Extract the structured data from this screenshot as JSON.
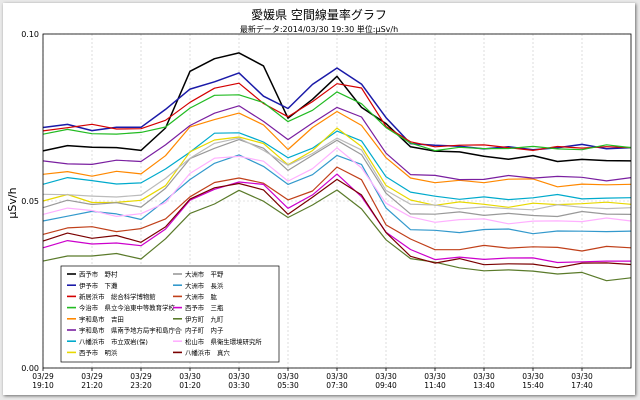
{
  "chart_data": {
    "type": "line",
    "title": "愛媛県 空間線量率グラフ",
    "subtitle": "最新データ:2014/03/30 19:30 単位:μSv/h",
    "ylabel": "μSv/h",
    "xlabel": "",
    "ylim": [
      0.0,
      0.1
    ],
    "yticks": [
      "0.00",
      "0.05",
      "0.10"
    ],
    "grid": true,
    "legend_position": "bottom-left",
    "x": [
      "03/29 19:10",
      "03/29 20:10",
      "03/29 21:20",
      "03/29 22:20",
      "03/29 23:20",
      "03/30 00:20",
      "03/30 01:20",
      "03/30 02:20",
      "03/30 03:30",
      "03/30 04:30",
      "03/30 05:30",
      "03/30 06:30",
      "03/30 07:30",
      "03/30 08:30",
      "03/30 09:40",
      "03/30 10:40",
      "03/30 11:40",
      "03/30 12:40",
      "03/30 13:40",
      "03/30 14:40",
      "03/30 15:40",
      "03/30 16:40",
      "03/30 17:40",
      "03/30 18:40",
      "03/30 19:30"
    ],
    "xtick_labels": [
      {
        "date": "03/29",
        "time": "19:10"
      },
      {
        "date": "03/29",
        "time": "21:20"
      },
      {
        "date": "03/29",
        "time": "23:20"
      },
      {
        "date": "03/30",
        "time": "01:20"
      },
      {
        "date": "03/30",
        "time": "03:30"
      },
      {
        "date": "03/30",
        "time": "05:30"
      },
      {
        "date": "03/30",
        "time": "07:30"
      },
      {
        "date": "03/30",
        "time": "09:40"
      },
      {
        "date": "03/30",
        "time": "11:40"
      },
      {
        "date": "03/30",
        "time": "13:40"
      },
      {
        "date": "03/30",
        "time": "15:40"
      },
      {
        "date": "03/30",
        "time": "17:40"
      }
    ],
    "series": [
      {
        "name": "西予市　野村",
        "color": "#000000",
        "values": [
          0.065,
          0.066,
          0.067,
          0.066,
          0.065,
          0.072,
          0.088,
          0.093,
          0.095,
          0.09,
          0.075,
          0.08,
          0.087,
          0.079,
          0.073,
          0.066,
          0.065,
          0.064,
          0.064,
          0.063,
          0.063,
          0.062,
          0.062,
          0.062,
          0.062
        ]
      },
      {
        "name": "伊予市　下灘",
        "color": "#1a1aa8",
        "values": [
          0.072,
          0.073,
          0.071,
          0.072,
          0.073,
          0.077,
          0.083,
          0.086,
          0.088,
          0.082,
          0.078,
          0.084,
          0.09,
          0.085,
          0.075,
          0.068,
          0.066,
          0.066,
          0.066,
          0.066,
          0.066,
          0.066,
          0.066,
          0.066,
          0.066
        ]
      },
      {
        "name": "新居浜市　総合科学博物館",
        "color": "#d40000",
        "values": [
          0.071,
          0.072,
          0.072,
          0.072,
          0.072,
          0.074,
          0.08,
          0.083,
          0.085,
          0.08,
          0.075,
          0.08,
          0.085,
          0.083,
          0.073,
          0.068,
          0.066,
          0.067,
          0.066,
          0.066,
          0.066,
          0.066,
          0.066,
          0.066,
          0.066
        ]
      },
      {
        "name": "今治市　県立今治東中等教育学校",
        "color": "#22bb22",
        "values": [
          0.07,
          0.071,
          0.07,
          0.07,
          0.07,
          0.073,
          0.078,
          0.081,
          0.082,
          0.079,
          0.074,
          0.078,
          0.082,
          0.079,
          0.072,
          0.067,
          0.066,
          0.066,
          0.065,
          0.066,
          0.066,
          0.066,
          0.066,
          0.066,
          0.066
        ]
      },
      {
        "name": "宇和島市　吉田",
        "color": "#ff8800",
        "values": [
          0.058,
          0.059,
          0.058,
          0.058,
          0.058,
          0.064,
          0.072,
          0.075,
          0.076,
          0.072,
          0.066,
          0.072,
          0.077,
          0.073,
          0.062,
          0.057,
          0.056,
          0.056,
          0.056,
          0.056,
          0.056,
          0.055,
          0.055,
          0.055,
          0.055
        ]
      },
      {
        "name": "宇和島市　県南予地方局宇和島庁舎",
        "color": "#7a1fa0",
        "values": [
          0.062,
          0.062,
          0.061,
          0.062,
          0.062,
          0.066,
          0.073,
          0.077,
          0.078,
          0.074,
          0.068,
          0.073,
          0.079,
          0.075,
          0.064,
          0.058,
          0.057,
          0.057,
          0.057,
          0.057,
          0.057,
          0.057,
          0.057,
          0.057,
          0.057
        ]
      },
      {
        "name": "八幡浜市　市立双岩(保)",
        "color": "#00aacc",
        "values": [
          0.055,
          0.057,
          0.056,
          0.056,
          0.055,
          0.059,
          0.065,
          0.07,
          0.071,
          0.068,
          0.062,
          0.066,
          0.071,
          0.068,
          0.058,
          0.052,
          0.051,
          0.051,
          0.051,
          0.051,
          0.051,
          0.051,
          0.051,
          0.051,
          0.051
        ]
      },
      {
        "name": "西予市　明浜",
        "color": "#e8d800",
        "values": [
          0.05,
          0.051,
          0.05,
          0.05,
          0.05,
          0.055,
          0.064,
          0.068,
          0.07,
          0.067,
          0.061,
          0.065,
          0.071,
          0.067,
          0.055,
          0.05,
          0.049,
          0.049,
          0.049,
          0.049,
          0.049,
          0.049,
          0.049,
          0.049,
          0.049
        ]
      },
      {
        "name": "大洲市　平野",
        "color": "#999999",
        "values": [
          0.048,
          0.05,
          0.049,
          0.049,
          0.049,
          0.054,
          0.062,
          0.066,
          0.068,
          0.066,
          0.06,
          0.063,
          0.068,
          0.064,
          0.052,
          0.047,
          0.046,
          0.046,
          0.046,
          0.046,
          0.046,
          0.046,
          0.046,
          0.046,
          0.046
        ]
      },
      {
        "name": "大洲市　長浜",
        "color": "#3399cc",
        "values": [
          0.044,
          0.046,
          0.046,
          0.046,
          0.045,
          0.05,
          0.057,
          0.061,
          0.063,
          0.061,
          0.055,
          0.058,
          0.064,
          0.06,
          0.048,
          0.042,
          0.041,
          0.041,
          0.041,
          0.041,
          0.041,
          0.041,
          0.041,
          0.041,
          0.041
        ]
      },
      {
        "name": "大洲市　肱",
        "color": "#c0401a",
        "values": [
          0.04,
          0.042,
          0.042,
          0.041,
          0.041,
          0.045,
          0.052,
          0.055,
          0.057,
          0.055,
          0.05,
          0.054,
          0.06,
          0.056,
          0.043,
          0.038,
          0.036,
          0.036,
          0.036,
          0.036,
          0.036,
          0.036,
          0.036,
          0.036,
          0.036
        ]
      },
      {
        "name": "西予市　三瓶",
        "color": "#cc00cc",
        "values": [
          0.036,
          0.038,
          0.038,
          0.037,
          0.036,
          0.042,
          0.05,
          0.054,
          0.056,
          0.054,
          0.048,
          0.052,
          0.058,
          0.052,
          0.04,
          0.035,
          0.033,
          0.033,
          0.033,
          0.033,
          0.032,
          0.032,
          0.032,
          0.032,
          0.032
        ]
      },
      {
        "name": "伊方町　九町",
        "color": "#5a7a2a",
        "values": [
          0.032,
          0.034,
          0.034,
          0.034,
          0.033,
          0.038,
          0.046,
          0.05,
          0.053,
          0.05,
          0.045,
          0.048,
          0.054,
          0.048,
          0.038,
          0.033,
          0.031,
          0.03,
          0.03,
          0.029,
          0.029,
          0.028,
          0.028,
          0.027,
          0.027
        ]
      },
      {
        "name": "内子町　内子",
        "color": "#bbbbbb",
        "values": [
          0.052,
          0.052,
          0.051,
          0.052,
          0.052,
          0.056,
          0.063,
          0.067,
          0.069,
          0.066,
          0.06,
          0.064,
          0.069,
          0.065,
          0.054,
          0.049,
          0.048,
          0.048,
          0.048,
          0.048,
          0.048,
          0.048,
          0.048,
          0.048,
          0.048
        ]
      },
      {
        "name": "松山市　県衛生環境研究所",
        "color": "#ffb0ff",
        "values": [
          0.046,
          0.047,
          0.047,
          0.046,
          0.046,
          0.05,
          0.058,
          0.062,
          0.064,
          0.062,
          0.056,
          0.06,
          0.065,
          0.06,
          0.05,
          0.045,
          0.044,
          0.044,
          0.044,
          0.044,
          0.044,
          0.044,
          0.044,
          0.044,
          0.044
        ]
      },
      {
        "name": "八幡浜市　真穴",
        "color": "#7a0000",
        "values": [
          0.038,
          0.04,
          0.039,
          0.039,
          0.038,
          0.043,
          0.05,
          0.054,
          0.055,
          0.053,
          0.047,
          0.051,
          0.056,
          0.052,
          0.04,
          0.034,
          0.032,
          0.032,
          0.031,
          0.031,
          0.031,
          0.031,
          0.031,
          0.031,
          0.031
        ]
      }
    ]
  }
}
